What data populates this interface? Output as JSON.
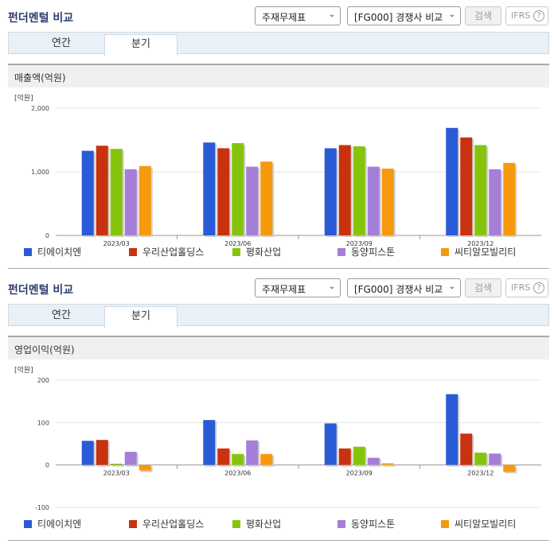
{
  "panels": [
    {
      "header": {
        "title": "펀더멘털 비교",
        "select_statement": "주재무제표",
        "select_compare": "[FG000] 경쟁사 비교",
        "search_label": "검색",
        "ifrs_label": "IFRS",
        "help_glyph": "?"
      },
      "tabs": {
        "annual": "연간",
        "quarter": "분기",
        "active": "quarter"
      },
      "metric_title": "매출액(억원)"
    },
    {
      "header": {
        "title": "펀더멘털 비교",
        "select_statement": "주재무제표",
        "select_compare": "[FG000] 경쟁사 비교",
        "search_label": "검색",
        "ifrs_label": "IFRS",
        "help_glyph": "?"
      },
      "tabs": {
        "annual": "연간",
        "quarter": "분기",
        "active": "quarter"
      },
      "metric_title": "영업이익(억원)"
    }
  ],
  "chart_data": [
    {
      "type": "bar",
      "title": "매출액(억원)",
      "unit_label": "[억원]",
      "categories": [
        "2023/03",
        "2023/06",
        "2023/09",
        "2023/12"
      ],
      "ylim": [
        0,
        2000
      ],
      "yticks": [
        0,
        1000,
        2000
      ],
      "ytick_labels": [
        "0",
        "1,000",
        "2,000"
      ],
      "grid": true,
      "legend_position": "bottom",
      "series": [
        {
          "name": "티에이치엔",
          "color": "#2a5bd7",
          "values": [
            1330,
            1460,
            1370,
            1690
          ]
        },
        {
          "name": "우리산업홀딩스",
          "color": "#c8320f",
          "values": [
            1410,
            1370,
            1420,
            1540
          ]
        },
        {
          "name": "평화산업",
          "color": "#86c40c",
          "values": [
            1360,
            1450,
            1400,
            1420
          ]
        },
        {
          "name": "동양피스톤",
          "color": "#a57ed8",
          "values": [
            1040,
            1080,
            1080,
            1040
          ]
        },
        {
          "name": "씨티알모빌리티",
          "color": "#f7990c",
          "values": [
            1090,
            1160,
            1050,
            1140
          ]
        }
      ]
    },
    {
      "type": "bar",
      "title": "영업이익(억원)",
      "unit_label": "[억원]",
      "categories": [
        "2023/03",
        "2023/06",
        "2023/09",
        "2023/12"
      ],
      "ylim": [
        -100,
        200
      ],
      "yticks": [
        -100,
        0,
        100,
        200
      ],
      "ytick_labels": [
        "-100",
        "0",
        "100",
        "200"
      ],
      "grid": true,
      "legend_position": "bottom",
      "series": [
        {
          "name": "티에이치엔",
          "color": "#2a5bd7",
          "values": [
            57,
            106,
            98,
            167
          ]
        },
        {
          "name": "우리산업홀딩스",
          "color": "#c8320f",
          "values": [
            59,
            39,
            39,
            74
          ]
        },
        {
          "name": "평화산업",
          "color": "#86c40c",
          "values": [
            3,
            26,
            43,
            29
          ]
        },
        {
          "name": "동양피스톤",
          "color": "#a57ed8",
          "values": [
            31,
            58,
            17,
            27
          ]
        },
        {
          "name": "씨티알모빌리티",
          "color": "#f7990c",
          "values": [
            -13,
            26,
            4,
            -16
          ]
        }
      ]
    }
  ]
}
